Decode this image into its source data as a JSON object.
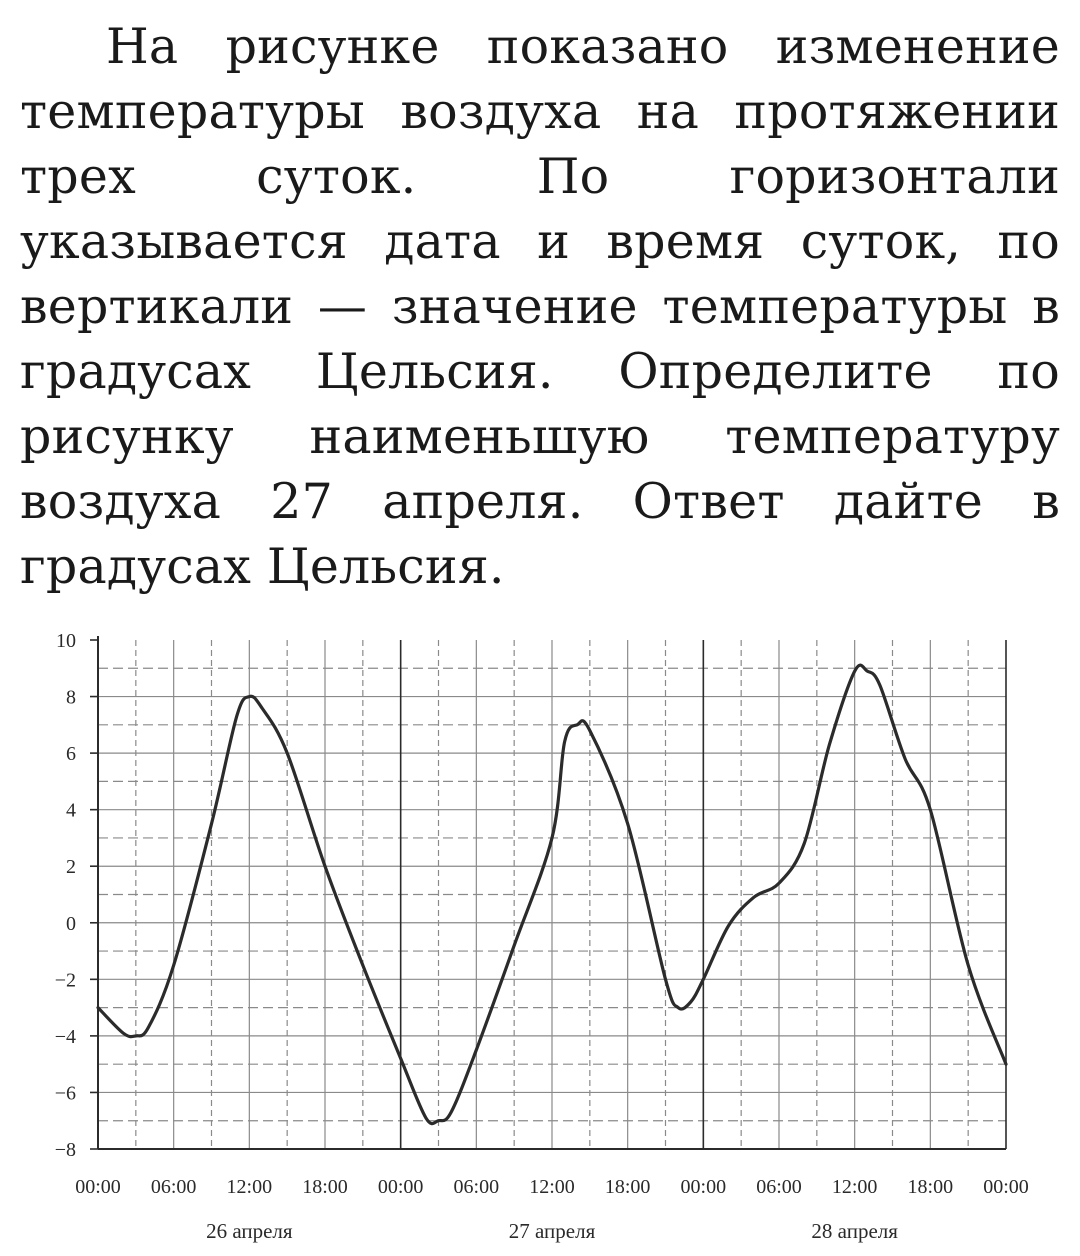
{
  "problem": {
    "text": "На рисунке показано изменение температуры воздуха на протяжении трех суток. По горизонтали указывается дата и время суток, по вертикали — значение температуры в градусах Цельсия. Определите по рисунку наименьшую температуру воздуха 27 апреля. Ответ дайте в градусах Цельсия."
  },
  "chart_data": {
    "type": "line",
    "title": "",
    "xlabel": "",
    "ylabel": "",
    "x_tick_labels": [
      "00:00",
      "06:00",
      "12:00",
      "18:00",
      "00:00",
      "06:00",
      "12:00",
      "18:00",
      "00:00",
      "06:00",
      "12:00",
      "18:00",
      "00:00"
    ],
    "day_labels": [
      "26 апреля",
      "27 апреля",
      "28 апреля"
    ],
    "y_tick_labels": [
      "10",
      "8",
      "6",
      "4",
      "2",
      "0",
      "−2",
      "−4",
      "−6",
      "−8"
    ],
    "xlim_hours": [
      0,
      72
    ],
    "ylim": [
      -8,
      10
    ],
    "grid": true,
    "day_separator_hours": [
      24,
      48
    ],
    "series": [
      {
        "x_hours": [
          0,
          2,
          3,
          4,
          6,
          9,
          11,
          12,
          13,
          15,
          18,
          21,
          24,
          26,
          27,
          28,
          30,
          33,
          36,
          37,
          38,
          39,
          42,
          45,
          46,
          47,
          48,
          50,
          52,
          54,
          56,
          58,
          60,
          61,
          62,
          64,
          66,
          69,
          72
        ],
        "values": [
          -3,
          -3.9,
          -4,
          -3.7,
          -1.5,
          3.5,
          7.3,
          8,
          7.6,
          6,
          2,
          -1.5,
          -4.8,
          -6.9,
          -7,
          -6.7,
          -4.5,
          -0.8,
          3,
          6.4,
          7,
          6.8,
          3.5,
          -2,
          -3,
          -2.8,
          -2,
          -0.1,
          0.9,
          1.4,
          2.8,
          6.3,
          8.9,
          8.9,
          8.4,
          5.8,
          4,
          -1.5,
          -5
        ]
      }
    ]
  },
  "style": {
    "line_color": "#2b2b2b",
    "grid_color": "#8a8a8a",
    "text_color": "#1a1a1a",
    "background": "#ffffff"
  }
}
